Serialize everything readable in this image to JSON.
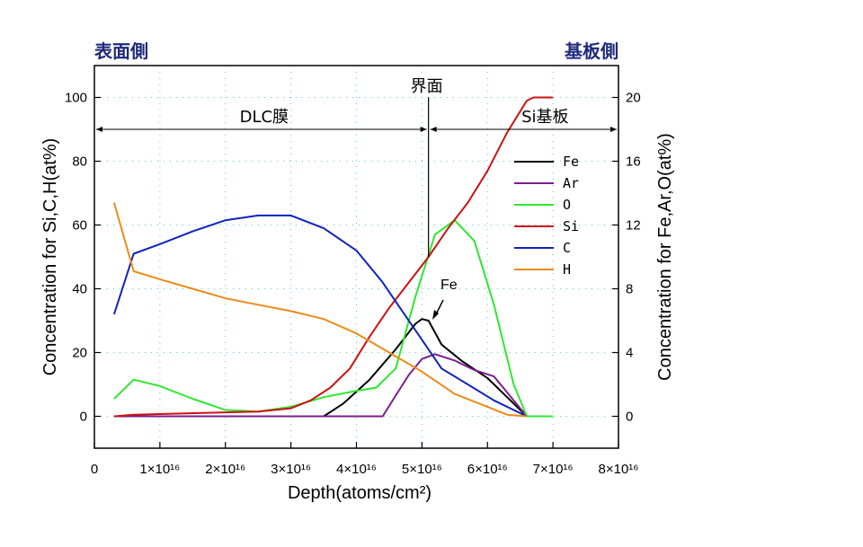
{
  "chart_data": {
    "type": "line",
    "x_axis": {
      "label": "Depth(atoms/cm²)",
      "range": [
        0,
        8e+16
      ],
      "ticks": [
        {
          "value": 0,
          "label": "0"
        },
        {
          "value": 1e+16,
          "label": "1×10¹⁶"
        },
        {
          "value": 2e+16,
          "label": "2×10¹⁶"
        },
        {
          "value": 3e+16,
          "label": "3×10¹⁶"
        },
        {
          "value": 4e+16,
          "label": "4×10¹⁶"
        },
        {
          "value": 5e+16,
          "label": "5×10¹⁶"
        },
        {
          "value": 6e+16,
          "label": "6×10¹⁶"
        },
        {
          "value": 7e+16,
          "label": "7×10¹⁶"
        },
        {
          "value": 8e+16,
          "label": "8×10¹⁶"
        }
      ]
    },
    "y_left": {
      "label": "Concentration for Si,C,H(at%)",
      "range": [
        -10,
        110
      ],
      "ticks": [
        0,
        20,
        40,
        60,
        80,
        100
      ]
    },
    "y_right": {
      "label": "Concentration for Fe,Ar,O(at%)",
      "range": [
        -2,
        22
      ],
      "ticks": [
        0,
        4,
        8,
        12,
        16,
        20
      ]
    },
    "grid": true,
    "legend_position": "right",
    "corner_labels": {
      "left": "表面側",
      "right": "基板側"
    },
    "regions": {
      "interface_label": "界面",
      "interface_x": 5.1e+16,
      "dlc_label": "DLC膜",
      "substrate_label": "Si基板",
      "arrow_level": 90
    },
    "annotations": [
      {
        "text": "Fe",
        "at": [
          5e+16,
          6.3
        ],
        "axis": "right"
      }
    ],
    "series": [
      {
        "name": "Fe",
        "axis": "right",
        "color": "#000000",
        "points": [
          [
            3.5e+16,
            0
          ],
          [
            3.8e+16,
            0.8
          ],
          [
            4.2e+16,
            2.3
          ],
          [
            4.6e+16,
            4.2
          ],
          [
            4.9e+16,
            5.8
          ],
          [
            5e+16,
            6.1
          ],
          [
            5.1e+16,
            6.0
          ],
          [
            5.3e+16,
            4.5
          ],
          [
            5.6e+16,
            3.5
          ],
          [
            6e+16,
            2.4
          ],
          [
            6.3e+16,
            1.2
          ],
          [
            6.6e+16,
            0
          ]
        ]
      },
      {
        "name": "Ar",
        "axis": "right",
        "color": "#7a1e8c",
        "points": [
          [
            3000000000000000.0,
            0
          ],
          [
            4.4e+16,
            0
          ],
          [
            4.6e+16,
            1.3
          ],
          [
            4.8e+16,
            2.6
          ],
          [
            5e+16,
            3.6
          ],
          [
            5.2e+16,
            3.9
          ],
          [
            5.5e+16,
            3.5
          ],
          [
            5.8e+16,
            2.9
          ],
          [
            6.1e+16,
            2.5
          ],
          [
            6.3e+16,
            1.5
          ],
          [
            6.6e+16,
            0
          ]
        ]
      },
      {
        "name": "O",
        "axis": "right",
        "color": "#2ee82e",
        "points": [
          [
            3000000000000000.0,
            1.1
          ],
          [
            6000000000000000.0,
            2.3
          ],
          [
            1e+16,
            1.9
          ],
          [
            1.5e+16,
            1.1
          ],
          [
            2e+16,
            0.4
          ],
          [
            2.5e+16,
            0.3
          ],
          [
            3e+16,
            0.6
          ],
          [
            3.5e+16,
            1.2
          ],
          [
            4e+16,
            1.6
          ],
          [
            4.3e+16,
            1.8
          ],
          [
            4.6e+16,
            3.0
          ],
          [
            4.9e+16,
            7.5
          ],
          [
            5.2e+16,
            11.4
          ],
          [
            5.5e+16,
            12.3
          ],
          [
            5.8e+16,
            11.0
          ],
          [
            6.1e+16,
            7.0
          ],
          [
            6.4e+16,
            2.0
          ],
          [
            6.6e+16,
            0
          ],
          [
            7e+16,
            0
          ]
        ]
      },
      {
        "name": "Si",
        "axis": "left",
        "color": "#cc1111",
        "points": [
          [
            3000000000000000.0,
            0
          ],
          [
            6000000000000000.0,
            0.5
          ],
          [
            2.5e+16,
            1.5
          ],
          [
            3e+16,
            2.5
          ],
          [
            3.3e+16,
            5
          ],
          [
            3.6e+16,
            9
          ],
          [
            3.9e+16,
            15
          ],
          [
            4.2e+16,
            25
          ],
          [
            4.5e+16,
            34
          ],
          [
            4.8e+16,
            42
          ],
          [
            5.1e+16,
            50
          ],
          [
            5.4e+16,
            59
          ],
          [
            5.7e+16,
            67
          ],
          [
            6e+16,
            77
          ],
          [
            6.3e+16,
            89
          ],
          [
            6.6e+16,
            99
          ],
          [
            6.7e+16,
            100
          ],
          [
            7e+16,
            100
          ]
        ]
      },
      {
        "name": "C",
        "axis": "left",
        "color": "#1022bb",
        "points": [
          [
            3000000000000000.0,
            32
          ],
          [
            6000000000000000.0,
            51
          ],
          [
            1e+16,
            54
          ],
          [
            1.5e+16,
            58
          ],
          [
            2e+16,
            61.5
          ],
          [
            2.5e+16,
            63
          ],
          [
            3e+16,
            63
          ],
          [
            3.5e+16,
            59
          ],
          [
            4e+16,
            52
          ],
          [
            4.4e+16,
            42
          ],
          [
            4.7e+16,
            33
          ],
          [
            5e+16,
            24
          ],
          [
            5.3e+16,
            15
          ],
          [
            5.7e+16,
            10
          ],
          [
            6.1e+16,
            5
          ],
          [
            6.6e+16,
            0
          ]
        ]
      },
      {
        "name": "H",
        "axis": "left",
        "color": "#ee8a1a",
        "points": [
          [
            3000000000000000.0,
            67
          ],
          [
            6000000000000000.0,
            45.5
          ],
          [
            1e+16,
            43
          ],
          [
            1.5e+16,
            40
          ],
          [
            2e+16,
            37
          ],
          [
            2.5e+16,
            35
          ],
          [
            3e+16,
            33
          ],
          [
            3.5e+16,
            30.5
          ],
          [
            4e+16,
            26
          ],
          [
            4.5e+16,
            20
          ],
          [
            5e+16,
            14
          ],
          [
            5.5e+16,
            7
          ],
          [
            6e+16,
            3
          ],
          [
            6.3e+16,
            0.5
          ],
          [
            6.6e+16,
            0
          ]
        ]
      }
    ]
  }
}
